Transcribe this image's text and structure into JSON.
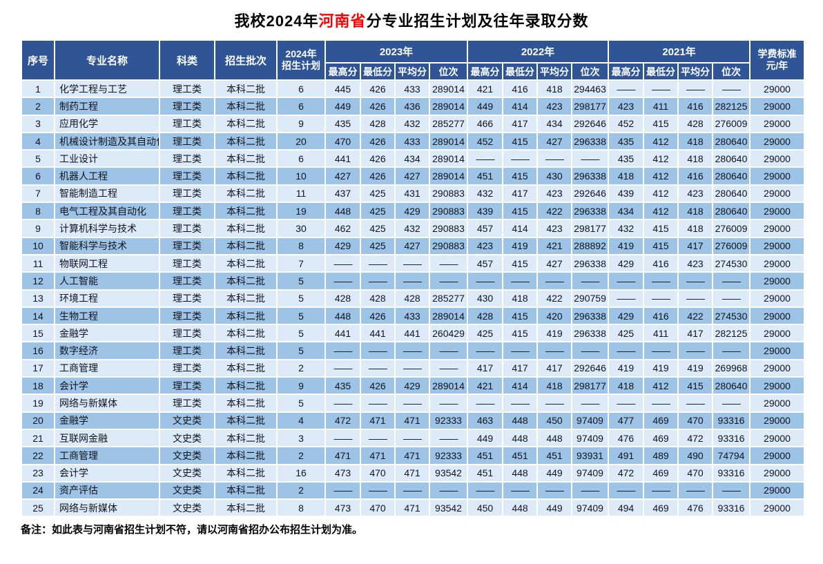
{
  "title": {
    "prefix": "我校2024年",
    "highlight": "河南省",
    "suffix": "分专业招生计划及往年录取分数"
  },
  "colors": {
    "header_bg": "#2f5597",
    "row_light": "#dcebf7",
    "row_medium": "#9dc3e6",
    "highlight_red": "#ff0000"
  },
  "table": {
    "headers": {
      "index": "序号",
      "major": "专业名称",
      "category": "科类",
      "batch": "招生批次",
      "plan2024_line1": "2024年",
      "plan2024_line2": "招生计划",
      "year_groups": [
        "2023年",
        "2022年",
        "2021年"
      ],
      "score_cols": [
        "最高分",
        "最低分",
        "平均分",
        "位次"
      ],
      "tuition_line1": "学费标准",
      "tuition_line2": "元/年"
    },
    "rows": [
      {
        "no": "1",
        "major": "化学工程与工艺",
        "category": "理工类",
        "batch": "本科二批",
        "plan": "6",
        "y2023": [
          "445",
          "426",
          "433",
          "289014"
        ],
        "y2022": [
          "421",
          "416",
          "418",
          "294463"
        ],
        "y2021": [
          "——",
          "——",
          "——",
          "——"
        ],
        "tuition": "29000"
      },
      {
        "no": "2",
        "major": "制药工程",
        "category": "理工类",
        "batch": "本科二批",
        "plan": "6",
        "y2023": [
          "449",
          "426",
          "436",
          "289014"
        ],
        "y2022": [
          "449",
          "414",
          "423",
          "298177"
        ],
        "y2021": [
          "423",
          "411",
          "416",
          "282125"
        ],
        "tuition": "29000"
      },
      {
        "no": "3",
        "major": "应用化学",
        "category": "理工类",
        "batch": "本科二批",
        "plan": "9",
        "y2023": [
          "435",
          "428",
          "432",
          "285277"
        ],
        "y2022": [
          "466",
          "417",
          "434",
          "292646"
        ],
        "y2021": [
          "452",
          "415",
          "428",
          "276009"
        ],
        "tuition": "29000"
      },
      {
        "no": "4",
        "major": "机械设计制造及其自动化",
        "category": "理工类",
        "batch": "本科二批",
        "plan": "20",
        "y2023": [
          "470",
          "426",
          "433",
          "289014"
        ],
        "y2022": [
          "452",
          "415",
          "427",
          "296338"
        ],
        "y2021": [
          "435",
          "412",
          "418",
          "280640"
        ],
        "tuition": "29000"
      },
      {
        "no": "5",
        "major": "工业设计",
        "category": "理工类",
        "batch": "本科二批",
        "plan": "6",
        "y2023": [
          "441",
          "426",
          "434",
          "289014"
        ],
        "y2022": [
          "——",
          "——",
          "——",
          "——"
        ],
        "y2021": [
          "435",
          "412",
          "418",
          "280640"
        ],
        "tuition": "29000"
      },
      {
        "no": "6",
        "major": "机器人工程",
        "category": "理工类",
        "batch": "本科二批",
        "plan": "10",
        "y2023": [
          "427",
          "426",
          "427",
          "289014"
        ],
        "y2022": [
          "451",
          "415",
          "430",
          "296338"
        ],
        "y2021": [
          "418",
          "412",
          "416",
          "280640"
        ],
        "tuition": "29000"
      },
      {
        "no": "7",
        "major": "智能制造工程",
        "category": "理工类",
        "batch": "本科二批",
        "plan": "11",
        "y2023": [
          "437",
          "425",
          "431",
          "290883"
        ],
        "y2022": [
          "432",
          "417",
          "423",
          "292646"
        ],
        "y2021": [
          "439",
          "412",
          "423",
          "280640"
        ],
        "tuition": "29000"
      },
      {
        "no": "8",
        "major": "电气工程及其自动化",
        "category": "理工类",
        "batch": "本科二批",
        "plan": "19",
        "y2023": [
          "448",
          "425",
          "429",
          "290883"
        ],
        "y2022": [
          "439",
          "415",
          "422",
          "296338"
        ],
        "y2021": [
          "434",
          "412",
          "418",
          "280640"
        ],
        "tuition": "29000"
      },
      {
        "no": "9",
        "major": "计算机科学与技术",
        "category": "理工类",
        "batch": "本科二批",
        "plan": "30",
        "y2023": [
          "462",
          "425",
          "432",
          "290883"
        ],
        "y2022": [
          "457",
          "414",
          "423",
          "298177"
        ],
        "y2021": [
          "432",
          "415",
          "418",
          "276009"
        ],
        "tuition": "29000"
      },
      {
        "no": "10",
        "major": "智能科学与技术",
        "category": "理工类",
        "batch": "本科二批",
        "plan": "8",
        "y2023": [
          "429",
          "425",
          "427",
          "290883"
        ],
        "y2022": [
          "423",
          "419",
          "421",
          "288892"
        ],
        "y2021": [
          "419",
          "415",
          "417",
          "276009"
        ],
        "tuition": "29000"
      },
      {
        "no": "11",
        "major": "物联网工程",
        "category": "理工类",
        "batch": "本科二批",
        "plan": "7",
        "y2023": [
          "——",
          "——",
          "——",
          "——"
        ],
        "y2022": [
          "457",
          "415",
          "427",
          "296338"
        ],
        "y2021": [
          "429",
          "416",
          "423",
          "274530"
        ],
        "tuition": "29000"
      },
      {
        "no": "12",
        "major": "人工智能",
        "category": "理工类",
        "batch": "本科二批",
        "plan": "5",
        "y2023": [
          "——",
          "——",
          "——",
          "——"
        ],
        "y2022": [
          "——",
          "——",
          "——",
          "——"
        ],
        "y2021": [
          "——",
          "——",
          "——",
          "——"
        ],
        "tuition": "29000"
      },
      {
        "no": "13",
        "major": "环境工程",
        "category": "理工类",
        "batch": "本科二批",
        "plan": "5",
        "y2023": [
          "428",
          "428",
          "428",
          "285277"
        ],
        "y2022": [
          "430",
          "418",
          "422",
          "290759"
        ],
        "y2021": [
          "——",
          "——",
          "——",
          "——"
        ],
        "tuition": "29000"
      },
      {
        "no": "14",
        "major": "生物工程",
        "category": "理工类",
        "batch": "本科二批",
        "plan": "5",
        "y2023": [
          "448",
          "426",
          "433",
          "289014"
        ],
        "y2022": [
          "428",
          "415",
          "420",
          "296338"
        ],
        "y2021": [
          "429",
          "416",
          "422",
          "274530"
        ],
        "tuition": "29000"
      },
      {
        "no": "15",
        "major": "金融学",
        "category": "理工类",
        "batch": "本科二批",
        "plan": "5",
        "y2023": [
          "441",
          "441",
          "441",
          "260429"
        ],
        "y2022": [
          "425",
          "415",
          "419",
          "296338"
        ],
        "y2021": [
          "425",
          "411",
          "417",
          "282125"
        ],
        "tuition": "29000"
      },
      {
        "no": "16",
        "major": "数字经济",
        "category": "理工类",
        "batch": "本科二批",
        "plan": "5",
        "y2023": [
          "——",
          "——",
          "——",
          "——"
        ],
        "y2022": [
          "——",
          "——",
          "——",
          "——"
        ],
        "y2021": [
          "——",
          "——",
          "——",
          "——"
        ],
        "tuition": "29000"
      },
      {
        "no": "17",
        "major": "工商管理",
        "category": "理工类",
        "batch": "本科二批",
        "plan": "2",
        "y2023": [
          "——",
          "——",
          "——",
          "——"
        ],
        "y2022": [
          "417",
          "417",
          "417",
          "292646"
        ],
        "y2021": [
          "419",
          "419",
          "419",
          "269968"
        ],
        "tuition": "29000"
      },
      {
        "no": "18",
        "major": "会计学",
        "category": "理工类",
        "batch": "本科二批",
        "plan": "9",
        "y2023": [
          "435",
          "426",
          "429",
          "289014"
        ],
        "y2022": [
          "421",
          "414",
          "418",
          "298177"
        ],
        "y2021": [
          "418",
          "412",
          "415",
          "280640"
        ],
        "tuition": "29000"
      },
      {
        "no": "19",
        "major": "网络与新媒体",
        "category": "理工类",
        "batch": "本科二批",
        "plan": "5",
        "y2023": [
          "——",
          "——",
          "——",
          "——"
        ],
        "y2022": [
          "——",
          "——",
          "——",
          "——"
        ],
        "y2021": [
          "——",
          "——",
          "——",
          "——"
        ],
        "tuition": "29000"
      },
      {
        "no": "20",
        "major": "金融学",
        "category": "文史类",
        "batch": "本科二批",
        "plan": "4",
        "y2023": [
          "472",
          "471",
          "471",
          "92333"
        ],
        "y2022": [
          "463",
          "448",
          "450",
          "97409"
        ],
        "y2021": [
          "477",
          "469",
          "470",
          "93316"
        ],
        "tuition": "29000"
      },
      {
        "no": "21",
        "major": "互联网金融",
        "category": "文史类",
        "batch": "本科二批",
        "plan": "3",
        "y2023": [
          "——",
          "——",
          "——",
          "——"
        ],
        "y2022": [
          "449",
          "448",
          "448",
          "97409"
        ],
        "y2021": [
          "476",
          "469",
          "472",
          "93316"
        ],
        "tuition": "29000"
      },
      {
        "no": "22",
        "major": "工商管理",
        "category": "文史类",
        "batch": "本科二批",
        "plan": "2",
        "y2023": [
          "471",
          "471",
          "471",
          "92333"
        ],
        "y2022": [
          "451",
          "451",
          "451",
          "93931"
        ],
        "y2021": [
          "491",
          "489",
          "490",
          "74794"
        ],
        "tuition": "29000"
      },
      {
        "no": "23",
        "major": "会计学",
        "category": "文史类",
        "batch": "本科二批",
        "plan": "16",
        "y2023": [
          "473",
          "470",
          "471",
          "93542"
        ],
        "y2022": [
          "451",
          "448",
          "449",
          "97409"
        ],
        "y2021": [
          "472",
          "469",
          "470",
          "93316"
        ],
        "tuition": "29000"
      },
      {
        "no": "24",
        "major": "资产评估",
        "category": "文史类",
        "batch": "本科二批",
        "plan": "2",
        "y2023": [
          "——",
          "——",
          "——",
          "——"
        ],
        "y2022": [
          "——",
          "——",
          "——",
          "——"
        ],
        "y2021": [
          "——",
          "——",
          "——",
          "——"
        ],
        "tuition": "29000"
      },
      {
        "no": "25",
        "major": "网络与新媒体",
        "category": "文史类",
        "batch": "本科二批",
        "plan": "8",
        "y2023": [
          "473",
          "470",
          "471",
          "93542"
        ],
        "y2022": [
          "450",
          "448",
          "449",
          "97409"
        ],
        "y2021": [
          "494",
          "469",
          "476",
          "93316"
        ],
        "tuition": "29000"
      }
    ]
  },
  "note": "备注：如此表与河南省招生计划不符，请以河南省招办公布招生计划为准。"
}
